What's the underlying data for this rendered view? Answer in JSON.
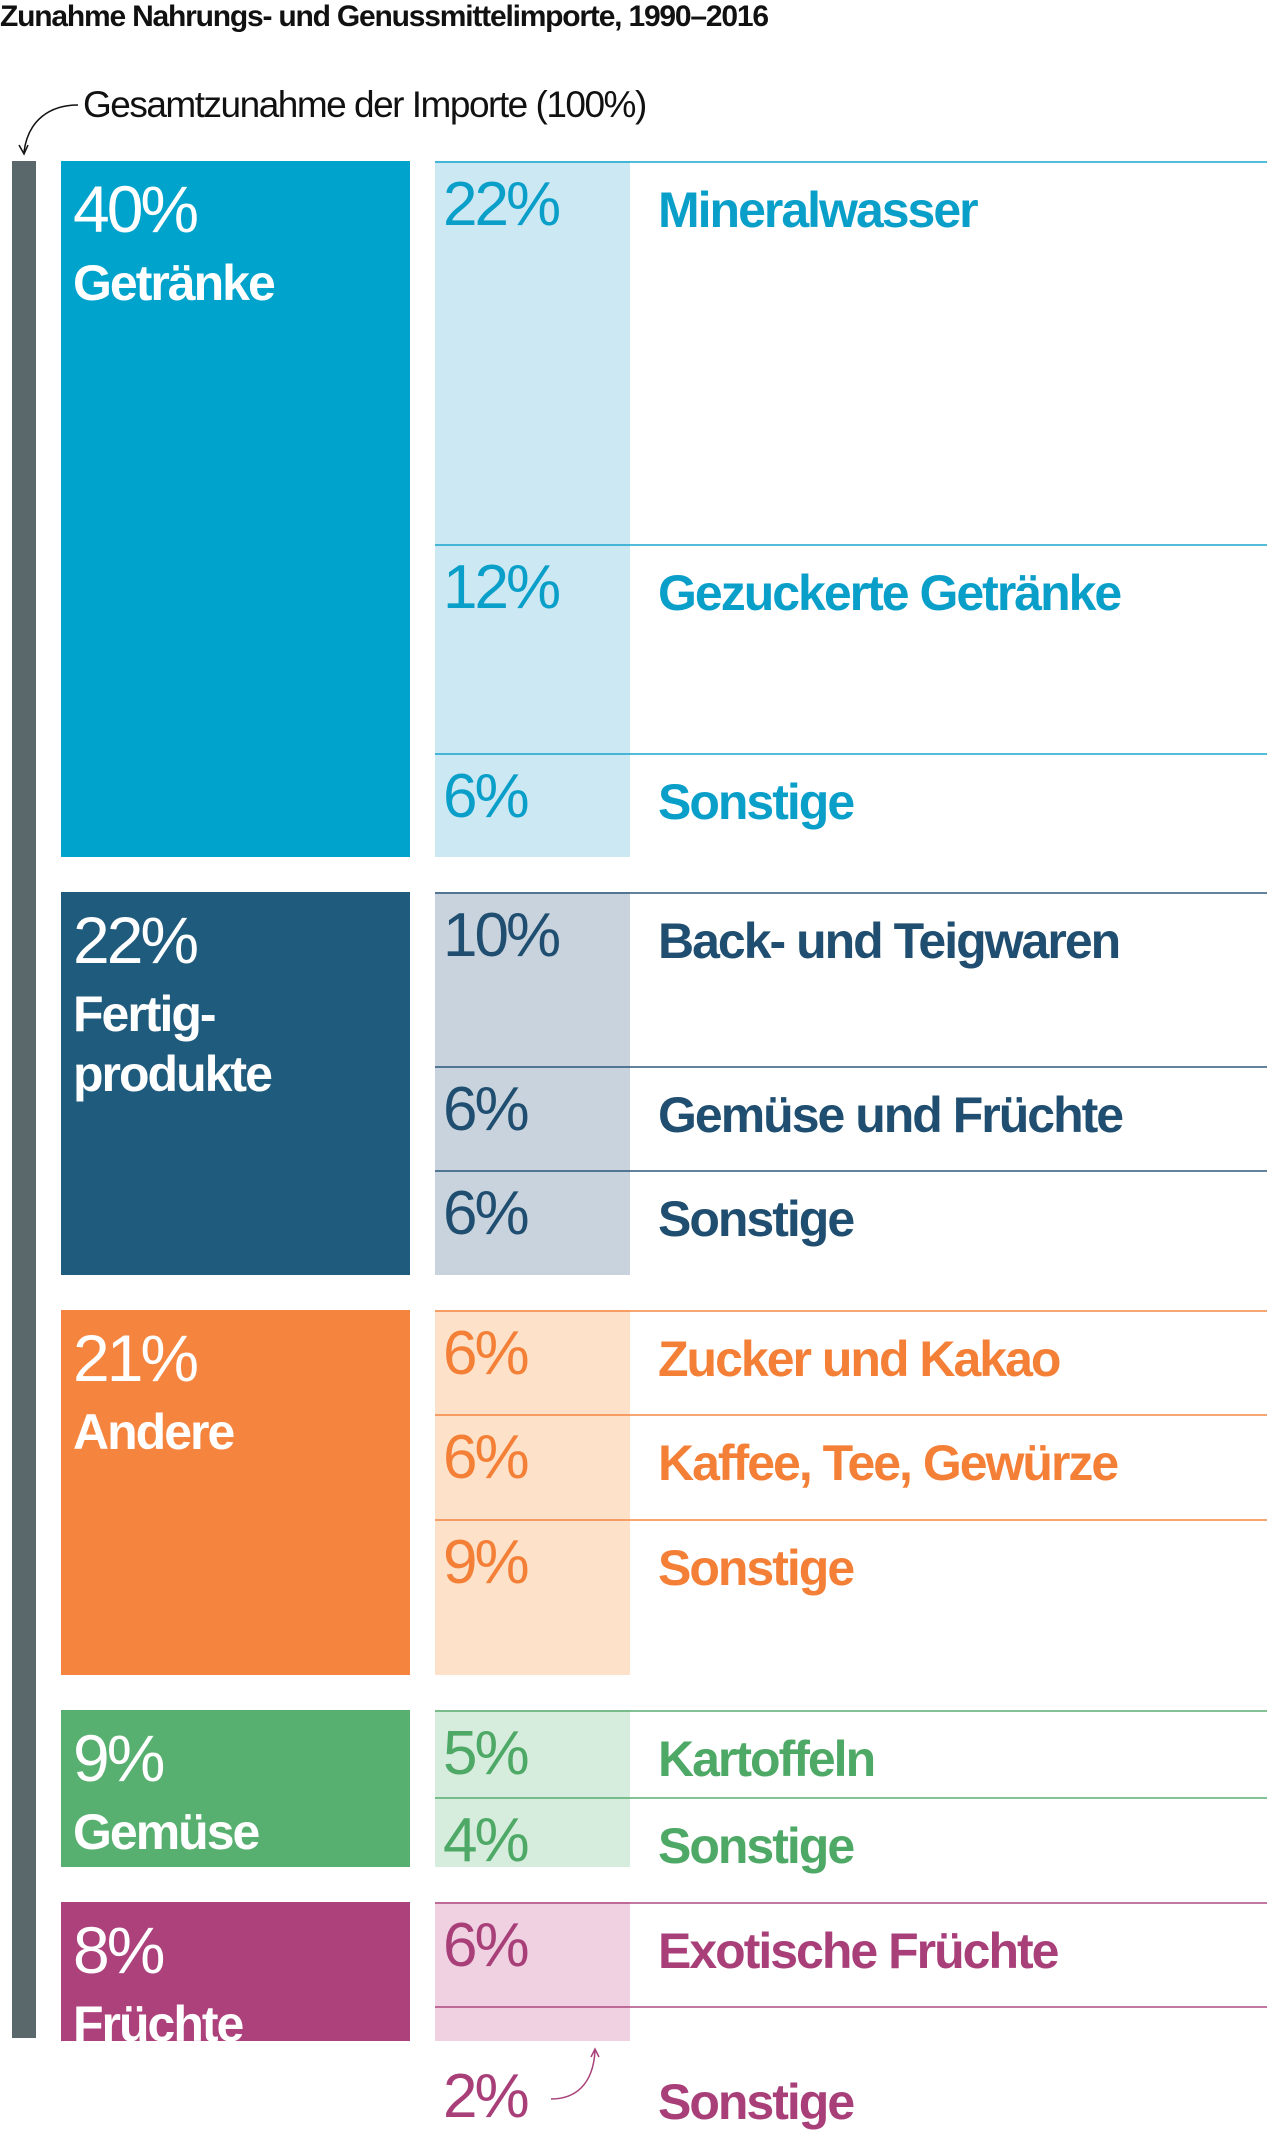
{
  "title": "Zunahme Nahrungs- und Genussmittelimporte, 1990–2016",
  "subtitle": "Gesamtzunahme der Importe (100%)",
  "chart_data": {
    "type": "bar",
    "title": "Zunahme Nahrungs- und Genussmittelimporte, 1990–2016",
    "total_label": "Gesamtzunahme der Importe (100%)",
    "total": 100,
    "groups": [
      {
        "pct_label": "40%",
        "name": "Getränke",
        "value": 40,
        "color": "#00a3cc",
        "light": "#cce8f3",
        "text": "#0a9fc9",
        "items": [
          {
            "pct_label": "22%",
            "label": "Mineralwasser",
            "value": 22
          },
          {
            "pct_label": "12%",
            "label": "Gezuckerte Getränke",
            "value": 12
          },
          {
            "pct_label": "6%",
            "label": "Sonstige",
            "value": 6
          }
        ]
      },
      {
        "pct_label": "22%",
        "name": "Fertig-\nprodukte",
        "value": 22,
        "color": "#1f5b7d",
        "light": "#c9d3de",
        "text": "#1f4e70",
        "items": [
          {
            "pct_label": "10%",
            "label": "Back- und Teigwaren",
            "value": 10
          },
          {
            "pct_label": "6%",
            "label": "Gemüse und Früchte",
            "value": 6
          },
          {
            "pct_label": "6%",
            "label": "Sonstige",
            "value": 6
          }
        ]
      },
      {
        "pct_label": "21%",
        "name": "Andere",
        "value": 21,
        "color": "#f5843e",
        "light": "#fde1c9",
        "text": "#f47f37",
        "items": [
          {
            "pct_label": "6%",
            "label": "Zucker und Kakao",
            "value": 6
          },
          {
            "pct_label": "6%",
            "label": "Kaffee, Tee, Gewürze",
            "value": 6
          },
          {
            "pct_label": "9%",
            "label": "Sonstige",
            "value": 9
          }
        ]
      },
      {
        "pct_label": "9%",
        "name": "Gemüse",
        "value": 9,
        "color": "#58b070",
        "light": "#d6ecdc",
        "text": "#4ea866",
        "items": [
          {
            "pct_label": "5%",
            "label": "Kartoffeln",
            "value": 5
          },
          {
            "pct_label": "4%",
            "label": "Sonstige",
            "value": 4
          }
        ]
      },
      {
        "pct_label": "8%",
        "name": "Früchte",
        "value": 8,
        "color": "#ad417c",
        "light": "#efd1e1",
        "text": "#a83f79",
        "items": [
          {
            "pct_label": "6%",
            "label": "Exotische Früchte",
            "value": 6
          },
          {
            "pct_label": "2%",
            "label": "Sonstige",
            "value": 2
          }
        ]
      }
    ]
  }
}
